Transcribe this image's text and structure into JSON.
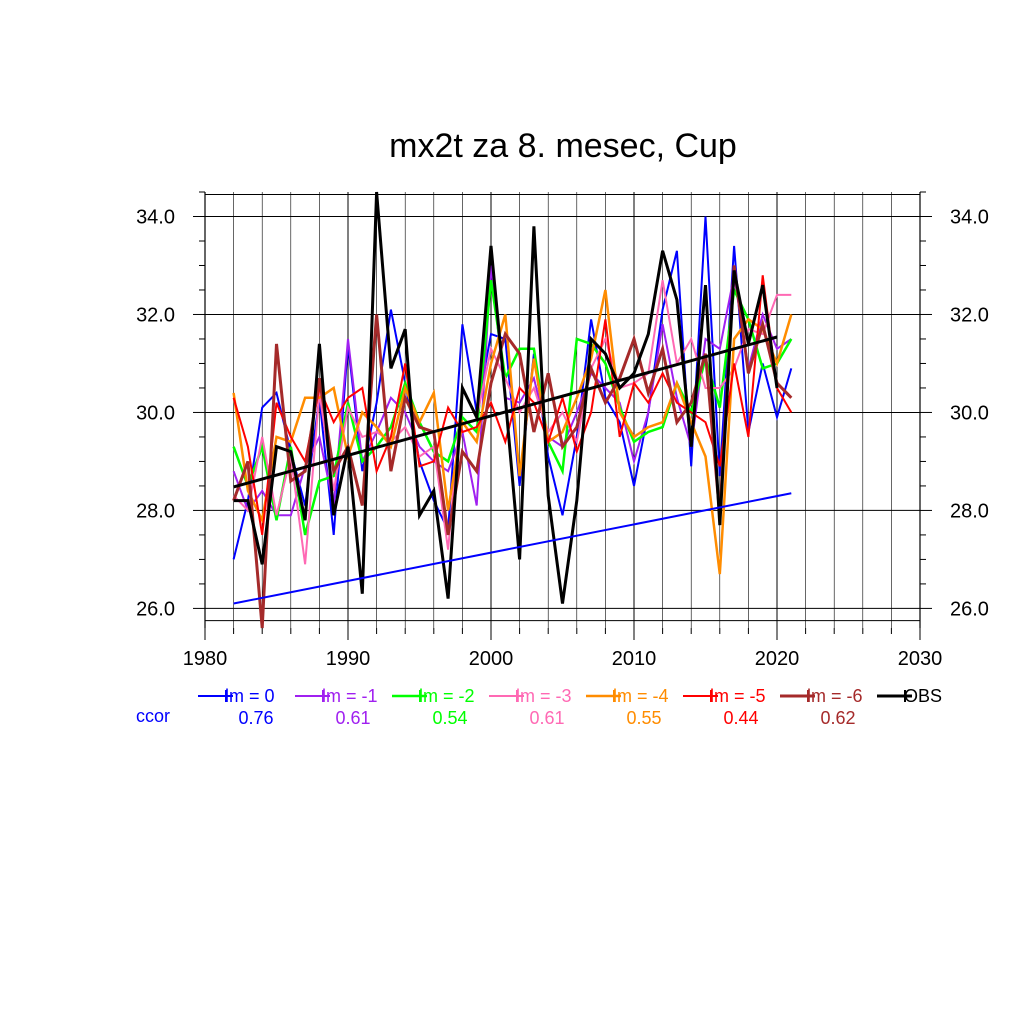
{
  "chart_data": {
    "type": "line",
    "title": "mx2t za 8. mesec, Cup",
    "xlabel": "",
    "ylabel": "",
    "xlim": [
      1980,
      2030
    ],
    "ylim": [
      25.6,
      34.5
    ],
    "x_ticks": [
      "1980",
      "1990",
      "2000",
      "2010",
      "2020",
      "2030"
    ],
    "y_ticks": [
      "26.0",
      "28.0",
      "30.0",
      "32.0",
      "34.0"
    ],
    "grid": true,
    "x": [
      1982,
      1983,
      1984,
      1985,
      1986,
      1987,
      1988,
      1989,
      1990,
      1991,
      1992,
      1993,
      1994,
      1995,
      1996,
      1997,
      1998,
      1999,
      2000,
      2001,
      2002,
      2003,
      2004,
      2005,
      2006,
      2007,
      2008,
      2009,
      2010,
      2011,
      2012,
      2013,
      2014,
      2015,
      2016,
      2017,
      2018,
      2019,
      2020,
      2021
    ],
    "series": [
      {
        "name": "lm = 0",
        "color": "#0000ff",
        "width": 2,
        "values": [
          27.0,
          28.2,
          30.1,
          30.4,
          29.2,
          28.1,
          30.3,
          27.5,
          31.4,
          28.8,
          30.2,
          32.1,
          30.6,
          29.0,
          28.2,
          27.6,
          31.8,
          30.0,
          31.6,
          31.5,
          28.5,
          31.2,
          29.1,
          27.9,
          29.5,
          31.9,
          30.3,
          29.8,
          28.5,
          30.0,
          32.1,
          33.3,
          28.9,
          34.0,
          28.7,
          33.4,
          29.6,
          31.0,
          29.9,
          30.9
        ]
      },
      {
        "name": "lm = -1",
        "color": "#a020f0",
        "width": 2,
        "values": [
          28.8,
          28.0,
          28.4,
          27.9,
          27.9,
          28.9,
          29.5,
          28.1,
          31.5,
          29.0,
          29.6,
          30.3,
          30.0,
          29.3,
          29.0,
          28.8,
          29.6,
          28.1,
          33.0,
          30.3,
          30.2,
          30.7,
          29.5,
          29.3,
          30.0,
          30.8,
          30.5,
          30.2,
          29.0,
          30.0,
          31.8,
          30.3,
          29.3,
          31.5,
          31.3,
          32.8,
          30.9,
          32.0,
          31.3,
          31.5
        ]
      },
      {
        "name": "lm = -2",
        "color": "#00ff00",
        "width": 2.5,
        "values": [
          29.3,
          28.5,
          29.3,
          27.8,
          29.3,
          27.5,
          28.6,
          28.7,
          30.2,
          29.0,
          29.3,
          29.7,
          30.6,
          29.8,
          29.2,
          29.0,
          29.9,
          29.6,
          32.7,
          30.7,
          31.3,
          31.3,
          29.4,
          28.8,
          31.5,
          31.4,
          31.0,
          30.1,
          29.4,
          29.6,
          29.7,
          30.6,
          30.0,
          31.1,
          30.1,
          32.5,
          31.9,
          30.9,
          31.0,
          31.5
        ]
      },
      {
        "name": "lm = -3",
        "color": "#ff69b4",
        "width": 2,
        "values": [
          28.3,
          28.0,
          29.5,
          27.9,
          29.1,
          26.9,
          30.4,
          28.4,
          30.1,
          29.5,
          29.6,
          29.4,
          29.7,
          29.1,
          29.3,
          27.2,
          30.5,
          29.9,
          31.3,
          30.7,
          30.0,
          30.5,
          29.6,
          30.0,
          29.4,
          30.9,
          31.5,
          30.5,
          30.6,
          30.8,
          32.7,
          31.0,
          31.5,
          30.5,
          30.5,
          30.9,
          31.7,
          31.6,
          32.4,
          32.4
        ]
      },
      {
        "name": "lm = -4",
        "color": "#ff8c00",
        "width": 2.5,
        "values": [
          30.4,
          28.4,
          27.8,
          29.5,
          29.4,
          30.3,
          30.3,
          30.5,
          29.1,
          30.0,
          29.7,
          29.3,
          30.5,
          29.8,
          30.4,
          28.0,
          29.8,
          29.4,
          31.0,
          32.0,
          28.7,
          31.1,
          29.4,
          29.6,
          30.3,
          31.1,
          32.5,
          30.0,
          29.5,
          29.7,
          29.8,
          30.6,
          29.8,
          29.1,
          26.7,
          31.5,
          31.9,
          31.7,
          31.0,
          32.0
        ]
      },
      {
        "name": "lm = -5",
        "color": "#ff0000",
        "width": 2,
        "values": [
          30.3,
          29.3,
          27.5,
          30.2,
          29.5,
          29.0,
          30.5,
          29.8,
          30.3,
          30.5,
          28.8,
          29.5,
          31.0,
          28.9,
          29.0,
          30.1,
          29.6,
          29.7,
          30.2,
          29.4,
          30.5,
          30.2,
          29.4,
          30.3,
          29.2,
          30.0,
          31.9,
          29.5,
          30.6,
          30.2,
          30.8,
          30.2,
          30.0,
          29.8,
          28.9,
          31.0,
          29.5,
          32.8,
          30.5,
          30.0
        ]
      },
      {
        "name": "lm = -6",
        "color": "#a52a2a",
        "width": 3,
        "values": [
          28.2,
          29.0,
          25.6,
          31.4,
          28.6,
          28.8,
          30.7,
          28.8,
          29.3,
          28.1,
          32.0,
          28.8,
          30.3,
          29.7,
          29.6,
          27.5,
          29.2,
          28.8,
          30.6,
          31.6,
          31.2,
          29.6,
          30.8,
          29.3,
          29.7,
          30.9,
          30.2,
          30.7,
          31.5,
          30.4,
          31.3,
          29.8,
          30.2,
          31.2,
          27.9,
          33.0,
          30.8,
          31.8,
          30.6,
          30.3
        ]
      },
      {
        "name": "OBS",
        "color": "#000000",
        "width": 3,
        "values": [
          28.2,
          28.2,
          26.9,
          29.3,
          29.2,
          27.8,
          31.4,
          27.9,
          29.3,
          26.3,
          34.5,
          30.9,
          31.7,
          27.9,
          28.4,
          26.2,
          30.5,
          29.9,
          33.4,
          30.3,
          27.0,
          33.8,
          28.3,
          26.1,
          28.2,
          31.5,
          31.2,
          30.5,
          30.8,
          31.6,
          33.3,
          32.3,
          29.3,
          32.6,
          27.7,
          32.9,
          31.4,
          32.6,
          30.5,
          null
        ]
      }
    ],
    "trend_lines": [
      {
        "name": "OBS trend",
        "color": "#000000",
        "width": 3,
        "x": [
          1982,
          2020
        ],
        "y": [
          28.48,
          31.54
        ]
      },
      {
        "name": "lm = 0 trend",
        "color": "#0000ff",
        "width": 2,
        "x": [
          1982,
          2021
        ],
        "y": [
          26.1,
          28.35
        ]
      }
    ],
    "ccor": {
      "label": "ccor",
      "label_color": "#0000ff",
      "values": [
        "0.76",
        "0.61",
        "0.54",
        "0.61",
        "0.55",
        "0.44",
        "0.62"
      ]
    }
  }
}
